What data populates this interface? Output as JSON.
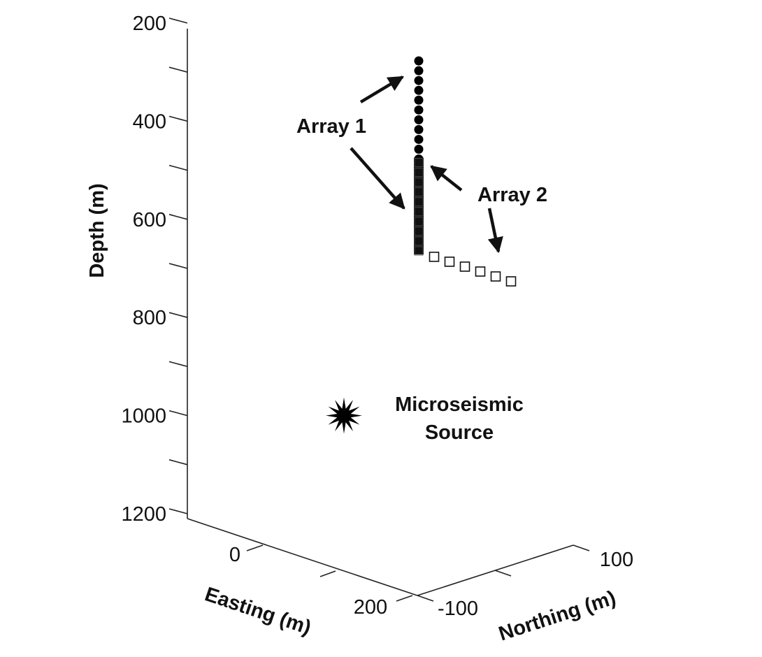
{
  "chart_data": {
    "type": "scatter",
    "projection": "3d",
    "title": "",
    "depth_axis": {
      "label": "Depth (m)",
      "ticks": [
        "200",
        "400",
        "600",
        "800",
        "1000",
        "1200"
      ],
      "range": [
        200,
        1200
      ],
      "reversed": true
    },
    "easting_axis": {
      "label": "Easting (m)",
      "ticks": [
        "0",
        "200"
      ]
    },
    "northing_axis": {
      "label": "Northing (m)",
      "ticks": [
        "-100",
        "100"
      ]
    },
    "series": [
      {
        "name": "Array 1",
        "marker": "filled-circle",
        "color": "#000000",
        "depths": [
          260,
          280,
          300,
          320,
          340,
          360,
          380,
          400,
          420,
          440,
          460
        ]
      },
      {
        "name": "Array 2",
        "marker": "open-square",
        "color": "#000000",
        "vertical_depths": [
          480,
          500,
          520,
          540,
          560,
          580,
          600,
          620,
          640,
          660
        ],
        "deviated_depths": [
          670,
          680,
          690,
          700,
          710,
          720
        ]
      },
      {
        "name": "Microseismic Source",
        "marker": "star-burst",
        "color": "#000000",
        "depth": 1000
      }
    ],
    "annotations": {
      "array1": "Array 1",
      "array2": "Array 2",
      "source_line1": "Microseismic",
      "source_line2": "Source"
    },
    "grid": false,
    "legend": "none"
  }
}
